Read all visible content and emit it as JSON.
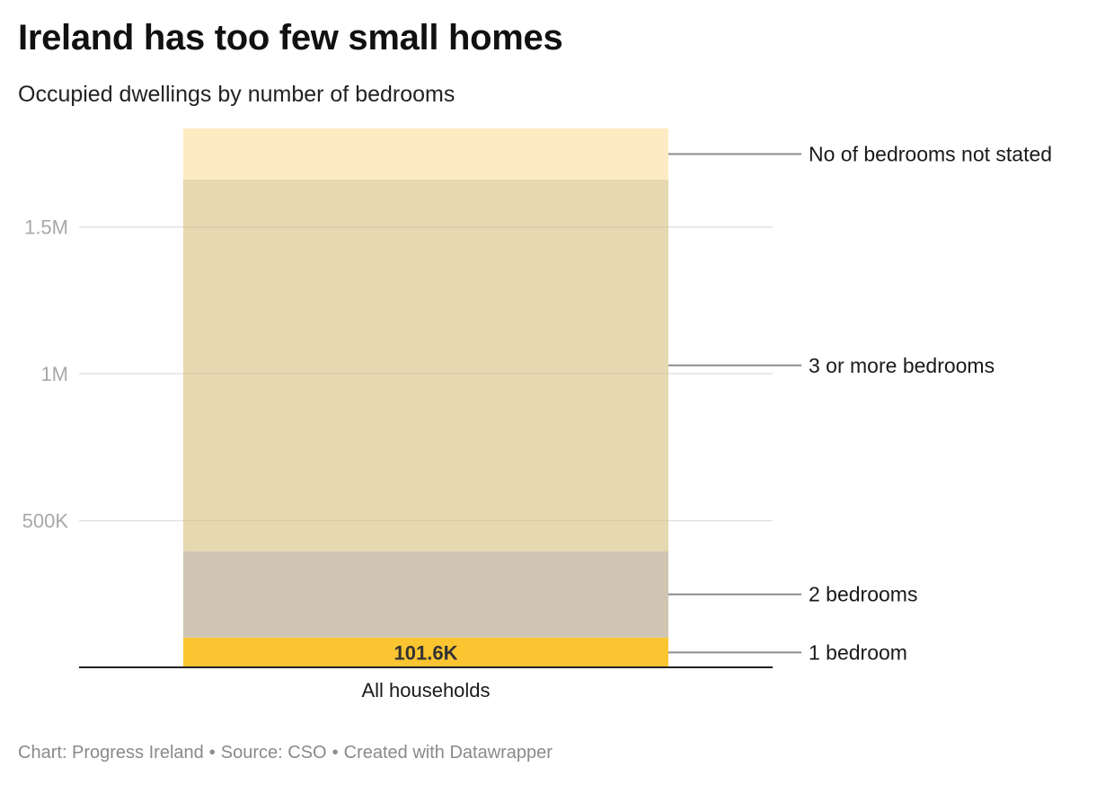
{
  "title": "Ireland has too few small homes",
  "subtitle": "Occupied dwellings by number of bedrooms",
  "footer": {
    "chart_credit": "Chart: Progress Ireland",
    "source": "Source: CSO",
    "tool": "Created with Datawrapper",
    "separator": "•"
  },
  "chart_data": {
    "type": "bar",
    "stacked": true,
    "categories": [
      "All households"
    ],
    "series": [
      {
        "name": "1 bedroom",
        "values": [
          101600
        ],
        "color": "#fbc531",
        "value_label": "101.6K"
      },
      {
        "name": "2 bedrooms",
        "values": [
          294000
        ],
        "color": "#d0c5b3"
      },
      {
        "name": "3 or more bedrooms",
        "values": [
          1266000
        ],
        "color": "#e6d8b0"
      },
      {
        "name": "No of bedrooms not stated",
        "values": [
          174000
        ],
        "color": "#fdecc3"
      }
    ],
    "yticks": [
      {
        "value": 500000,
        "label": "500K"
      },
      {
        "value": 1000000,
        "label": "1M"
      },
      {
        "value": 1500000,
        "label": "1.5M"
      }
    ],
    "ylim": [
      0,
      1835600
    ],
    "grid": true,
    "legend": "direct labels right of bar",
    "gridline_color": "#e2e2e2",
    "tick_color": "#a8a8a8",
    "leader_color": "#8c8c8c"
  }
}
